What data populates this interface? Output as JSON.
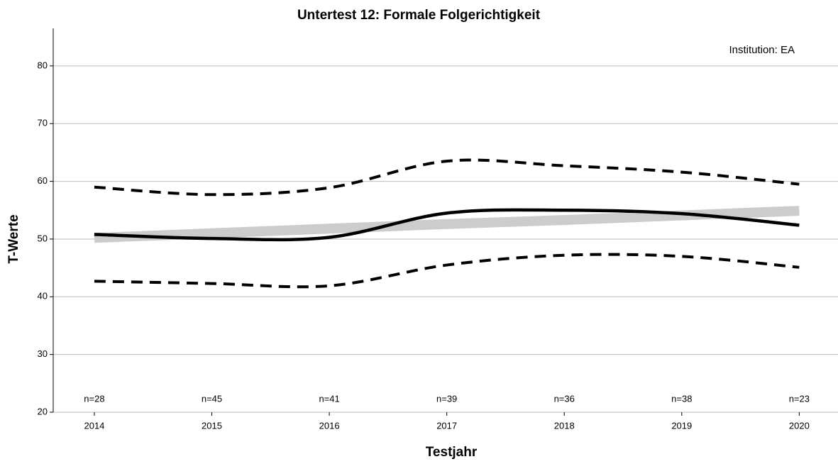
{
  "chart_data": {
    "type": "line",
    "title": "Untertest 12: Formale Folgerichtigkeit",
    "x_label": "Testjahr",
    "y_label": "T-Werte",
    "annotation": "Institution: EA",
    "x": [
      2014,
      2015,
      2016,
      2017,
      2018,
      2019,
      2020
    ],
    "xlim": [
      2013.65,
      2020.33
    ],
    "xticks": [
      2014,
      2015,
      2016,
      2017,
      2018,
      2019,
      2020
    ],
    "ylim": [
      20,
      86.5
    ],
    "yticks": [
      20,
      30,
      40,
      50,
      60,
      70,
      80
    ],
    "grid": true,
    "n_labels": [
      "n=28",
      "n=45",
      "n=41",
      "n=39",
      "n=36",
      "n=38",
      "n=23"
    ],
    "n_label_y": 22.2,
    "series": [
      {
        "color": "#cccccc",
        "style": "trend",
        "values": [
          50.2,
          51.0,
          51.8,
          52.6,
          53.3,
          54.1,
          54.9
        ]
      },
      {
        "color": "#000000",
        "style": "dashed",
        "values": [
          59.0,
          57.7,
          58.9,
          63.5,
          62.7,
          61.6,
          59.5
        ]
      },
      {
        "color": "#000000",
        "style": "dashed",
        "values": [
          42.7,
          42.3,
          41.9,
          45.5,
          47.2,
          47.0,
          45.1
        ]
      },
      {
        "color": "#000000",
        "style": "solid",
        "values": [
          50.8,
          50.1,
          50.3,
          54.5,
          55.0,
          54.4,
          52.4
        ]
      }
    ]
  }
}
